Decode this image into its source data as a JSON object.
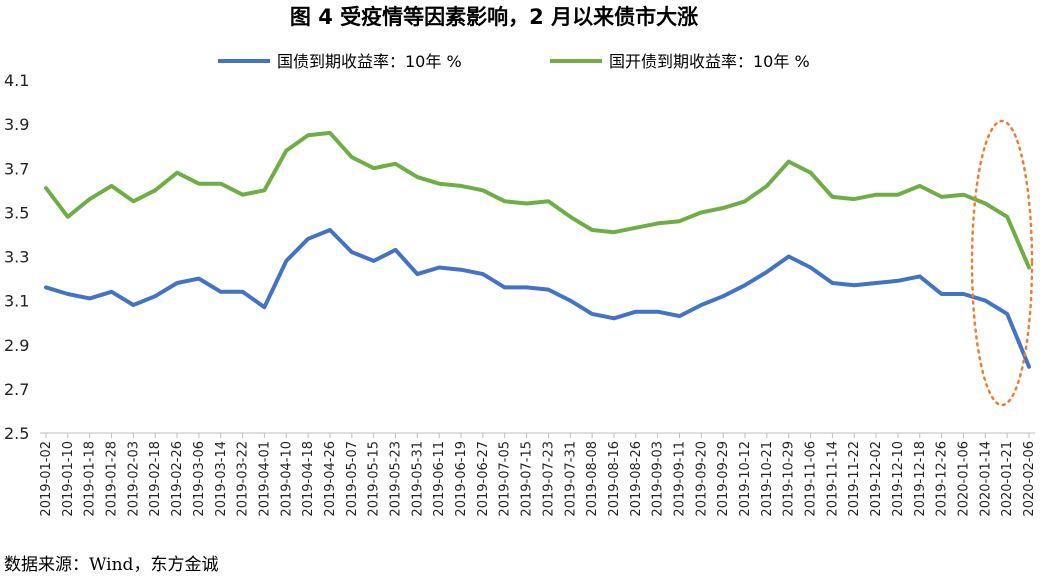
{
  "chart_data": {
    "type": "line",
    "title": "图 4   受疫情等因素影响，2 月以来债市大涨",
    "source": "数据来源：Wind，东方金诚",
    "ylim": [
      2.5,
      4.1
    ],
    "yticks": [
      "4.1",
      "3.9",
      "3.7",
      "3.5",
      "3.3",
      "3.1",
      "2.9",
      "2.7",
      "2.5"
    ],
    "ytick_values": [
      4.1,
      3.9,
      3.7,
      3.5,
      3.3,
      3.1,
      2.9,
      2.7,
      2.5
    ],
    "grid": false,
    "legend_position": "top",
    "x": [
      "2019-01-02",
      "2019-01-10",
      "2019-01-18",
      "2019-01-28",
      "2019-02-03",
      "2019-02-18",
      "2019-02-26",
      "2019-03-06",
      "2019-03-14",
      "2019-03-22",
      "2019-04-01",
      "2019-04-10",
      "2019-04-18",
      "2019-04-26",
      "2019-05-07",
      "2019-05-15",
      "2019-05-23",
      "2019-05-31",
      "2019-06-11",
      "2019-06-19",
      "2019-06-27",
      "2019-07-05",
      "2019-07-15",
      "2019-07-23",
      "2019-07-31",
      "2019-08-08",
      "2019-08-16",
      "2019-08-26",
      "2019-09-03",
      "2019-09-11",
      "2019-09-20",
      "2019-09-29",
      "2019-10-12",
      "2019-10-21",
      "2019-10-29",
      "2019-11-06",
      "2019-11-14",
      "2019-11-22",
      "2019-12-02",
      "2019-12-10",
      "2019-12-18",
      "2019-12-26",
      "2020-01-06",
      "2020-01-14",
      "2020-01-21",
      "2020-02-06"
    ],
    "series": [
      {
        "name": "国债到期收益率：10年 %",
        "color": "#4472C4",
        "values": [
          3.16,
          3.13,
          3.11,
          3.14,
          3.08,
          3.12,
          3.18,
          3.2,
          3.14,
          3.14,
          3.07,
          3.28,
          3.38,
          3.42,
          3.32,
          3.28,
          3.33,
          3.22,
          3.25,
          3.24,
          3.22,
          3.16,
          3.16,
          3.15,
          3.1,
          3.04,
          3.02,
          3.05,
          3.05,
          3.03,
          3.08,
          3.12,
          3.17,
          3.23,
          3.3,
          3.25,
          3.18,
          3.17,
          3.18,
          3.19,
          3.21,
          3.13,
          3.13,
          3.1,
          3.04,
          2.8
        ]
      },
      {
        "name": "国开债到期收益率：10年 %",
        "color": "#70AD47",
        "values": [
          3.61,
          3.48,
          3.56,
          3.62,
          3.55,
          3.6,
          3.68,
          3.63,
          3.63,
          3.58,
          3.6,
          3.78,
          3.85,
          3.86,
          3.75,
          3.7,
          3.72,
          3.66,
          3.63,
          3.62,
          3.6,
          3.55,
          3.54,
          3.55,
          3.48,
          3.42,
          3.41,
          3.43,
          3.45,
          3.46,
          3.5,
          3.52,
          3.55,
          3.62,
          3.73,
          3.68,
          3.57,
          3.56,
          3.58,
          3.58,
          3.62,
          3.57,
          3.58,
          3.54,
          3.48,
          3.25
        ]
      }
    ]
  }
}
